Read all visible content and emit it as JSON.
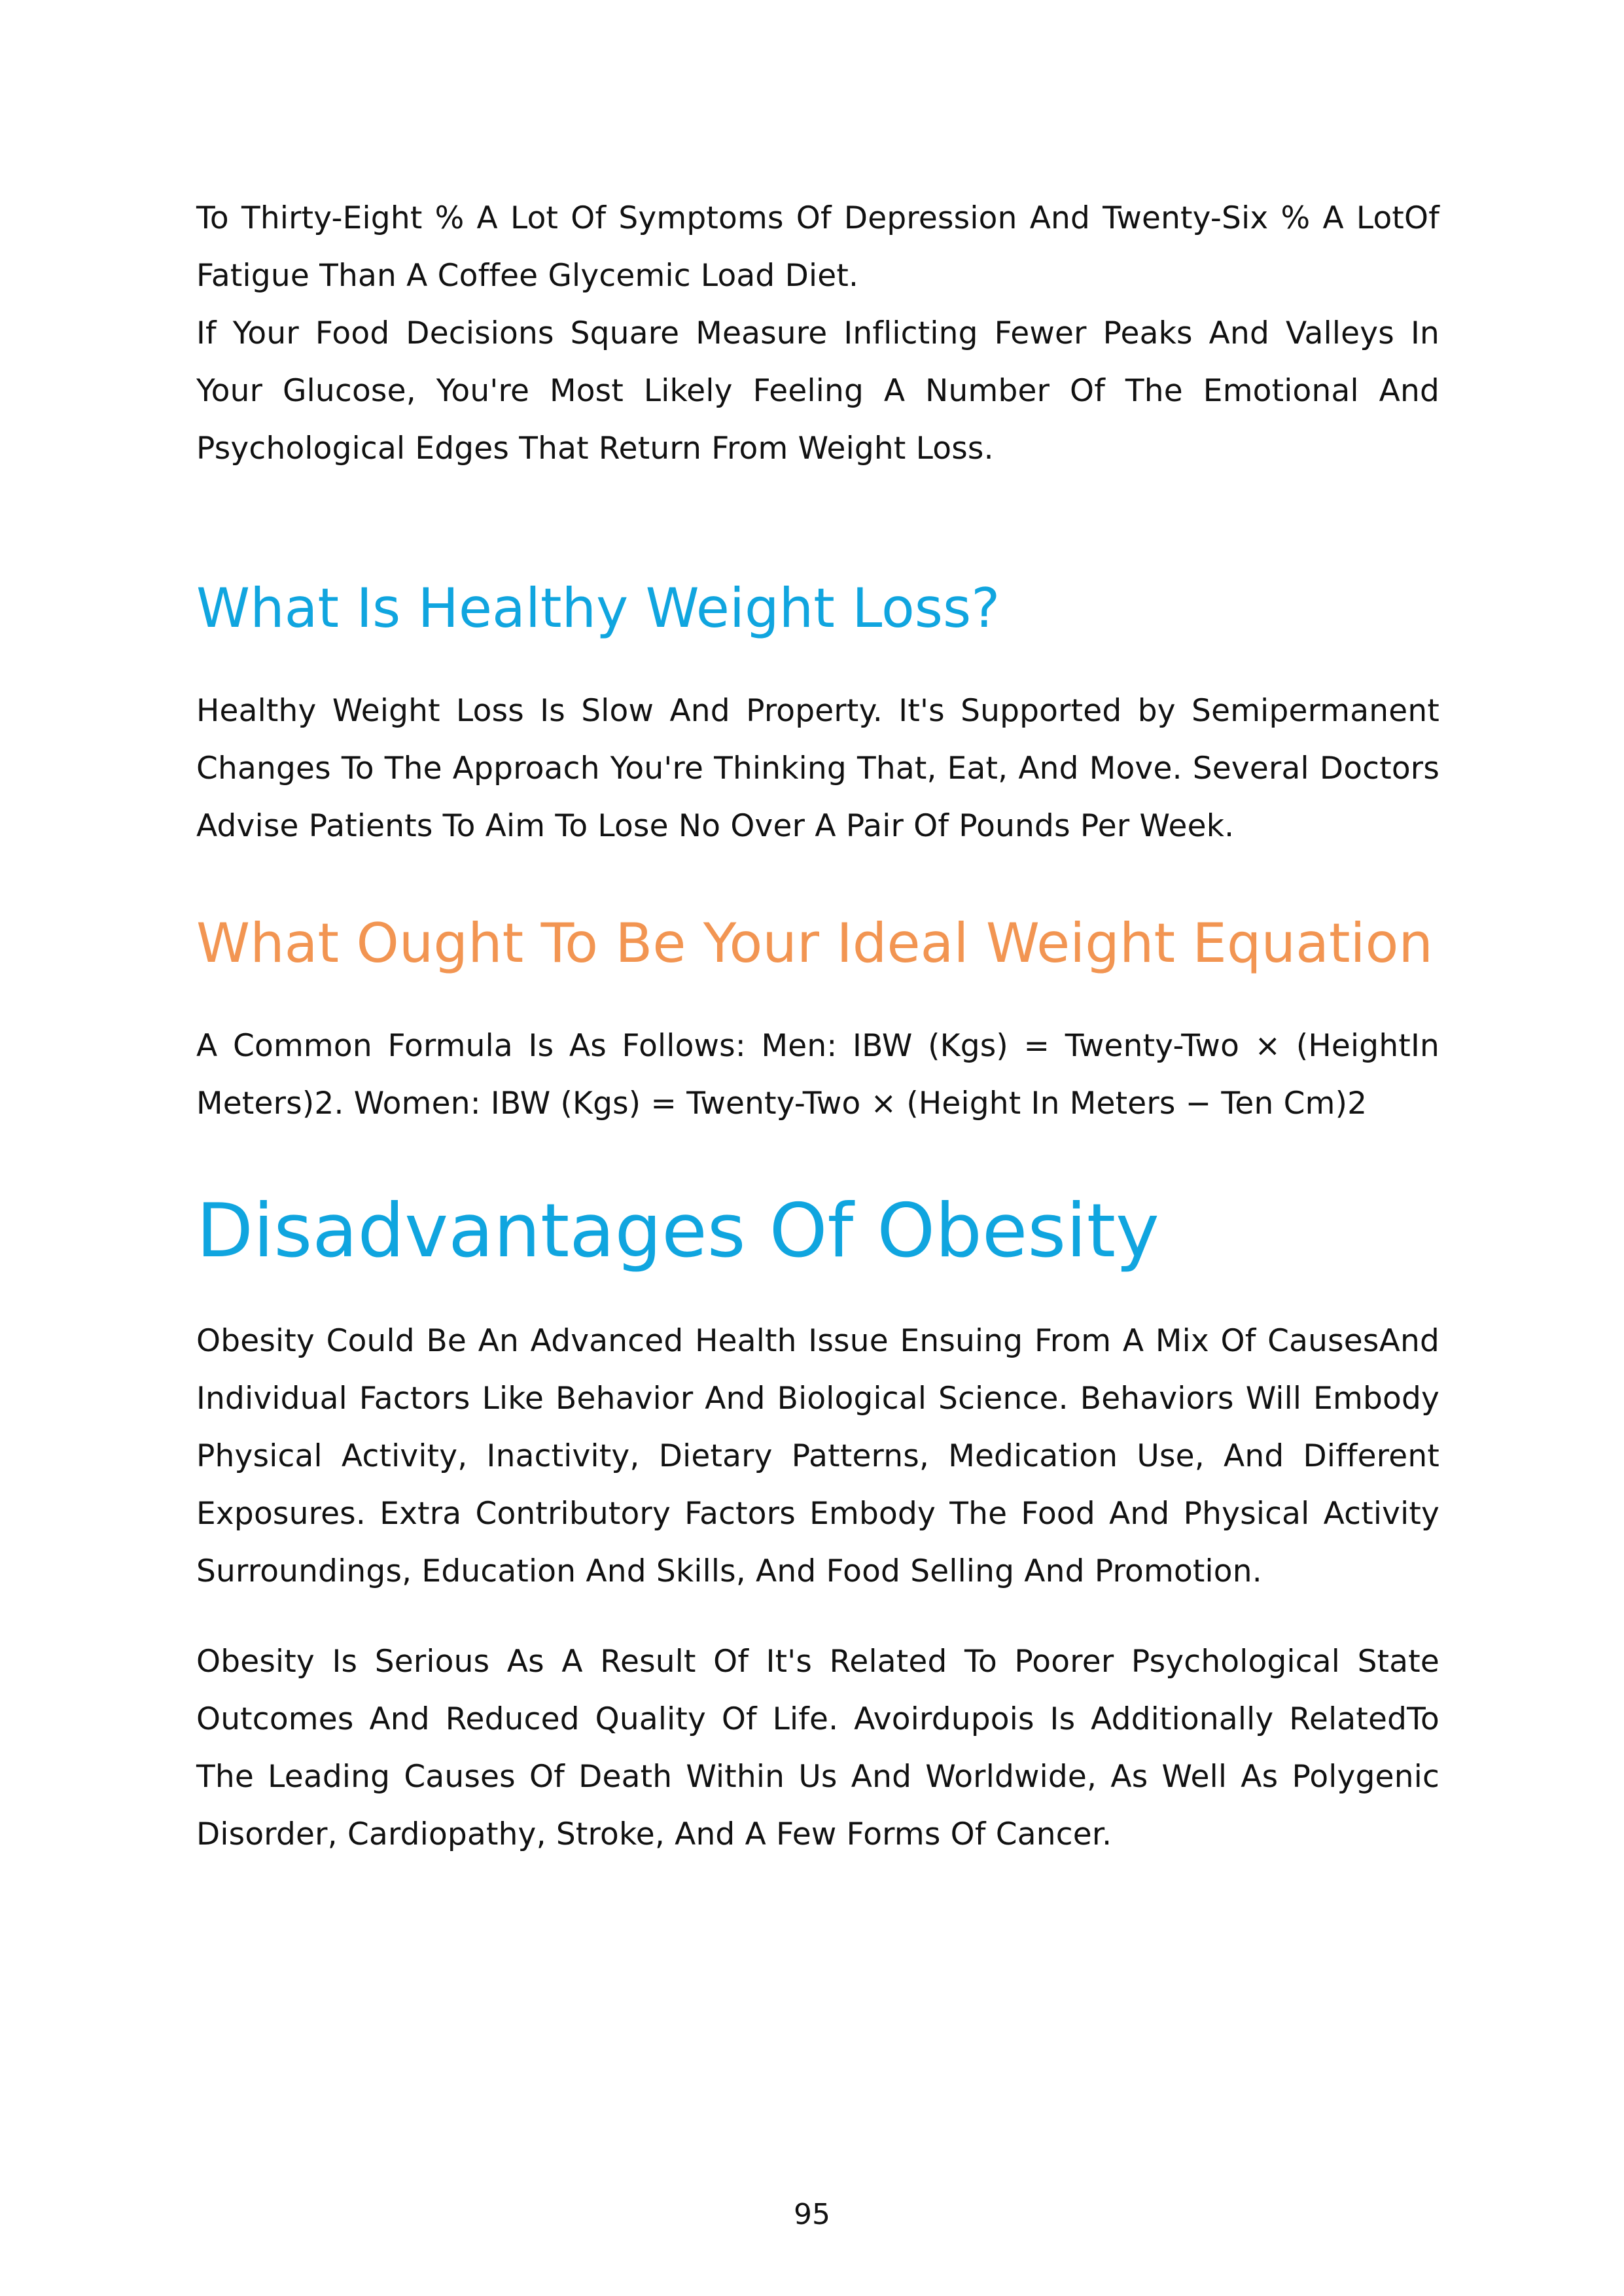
{
  "paragraphs": {
    "intro_1": "To Thirty-Eight % A Lot Of Symptoms Of Depression And Twenty-Six % A LotOf Fatigue Than A Coffee Glycemic Load Diet.",
    "intro_2": "If Your Food Decisions Square Measure Inflicting Fewer Peaks And Valleys In Your Glucose, You're Most Likely Feeling A Number Of The Emotional And Psychological Edges That Return From Weight Loss.",
    "healthy": "Healthy Weight Loss Is Slow And Property. It's Supported by Semipermanent Changes To The Approach You're Thinking That, Eat, And Move. Several Doctors Advise Patients To Aim To Lose No Over A Pair Of Pounds Per Week.",
    "formula": "A Common Formula Is As Follows: Men: IBW (Kgs) = Twenty-Two × (HeightIn Meters)2. Women: IBW (Kgs) = Twenty-Two × (Height In Meters − Ten Cm)2",
    "obesity_1": "Obesity Could Be An Advanced Health Issue Ensuing From A Mix Of CausesAnd Individual Factors Like Behavior And Biological Science. Behaviors Will Embody Physical Activity, Inactivity, Dietary Patterns, Medication Use, And Different Exposures. Extra Contributory Factors Embody The Food And Physical Activity Surroundings, Education And Skills, And Food Selling And Promotion.",
    "obesity_2": "Obesity Is Serious As A Result Of It's Related To Poorer Psychological State Outcomes And Reduced Quality Of Life. Avoirdupois Is Additionally RelatedTo The Leading Causes Of Death Within Us And Worldwide, As Well As Polygenic Disorder, Cardiopathy, Stroke, And A Few Forms Of Cancer."
  },
  "headings": {
    "healthy_weight_loss": "What Is Healthy Weight Loss?",
    "ideal_weight": "What Ought To Be Your Ideal Weight Equation",
    "disadvantages": "Disadvantages Of Obesity"
  },
  "colors": {
    "heading_blue": "#10a5df",
    "heading_orange": "#f29552",
    "body_text": "#111111"
  },
  "footer": {
    "page_number": "95"
  }
}
